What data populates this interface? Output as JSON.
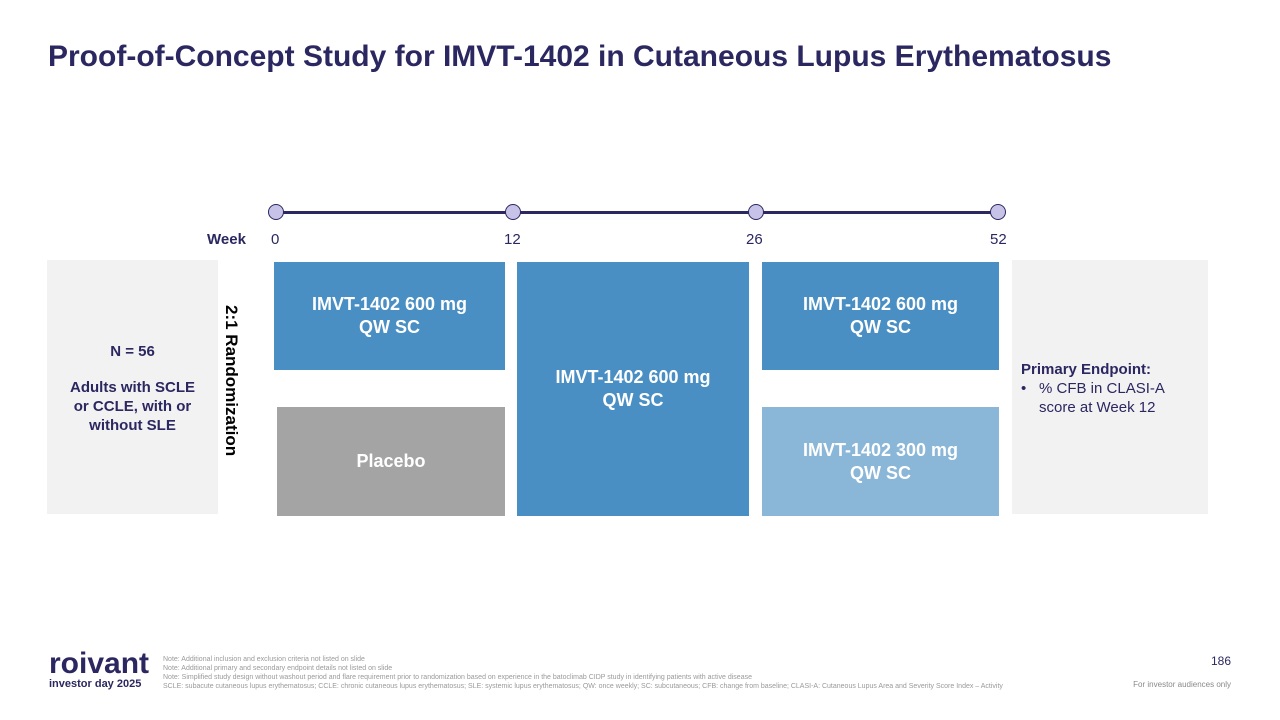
{
  "title": "Proof-of-Concept Study for IMVT-1402 in Cutaneous Lupus Erythematosus",
  "timeline": {
    "label": "Week",
    "ticks": [
      "0",
      "12",
      "26",
      "52"
    ]
  },
  "population": {
    "n": "N = 56",
    "description": "Adults with SCLE or CCLE, with or without SLE"
  },
  "randomization": "2:1 Randomization",
  "arms": {
    "top_first": {
      "line1": "IMVT-1402 600 mg",
      "line2": "QW SC"
    },
    "placebo": "Placebo",
    "middle": {
      "line1": "IMVT-1402 600 mg",
      "line2": "QW SC"
    },
    "top_last": {
      "line1": "IMVT-1402 600 mg",
      "line2": "QW SC"
    },
    "bottom_last": {
      "line1": "IMVT-1402 300 mg",
      "line2": "QW SC"
    }
  },
  "endpoint": {
    "heading": "Primary Endpoint:",
    "bullet_marker": "•",
    "bullet": "% CFB in CLASI-A score at Week 12"
  },
  "logo": {
    "word": "roivant",
    "sub": "investor day 2025"
  },
  "notes": [
    "Note: Additional inclusion and exclusion criteria not listed on slide",
    "Note: Additional primary and secondary endpoint details not listed on slide",
    "Note: Simplified study design without washout period and flare requirement prior to randomization based on experience in the batoclimab CIDP study in identifying patients with active disease",
    "SCLE: subacute cutaneous lupus erythematosus; CCLE: chronic cutaneous lupus erythematosus; SLE: systemic lupus erythematosus; QW: once weekly; SC: subcutaneous; CFB: change from baseline; CLASI-A: Cutaneous Lupus Area and Severity Score Index – Activity"
  ],
  "page_number": "186",
  "audience": "For investor audiences only"
}
